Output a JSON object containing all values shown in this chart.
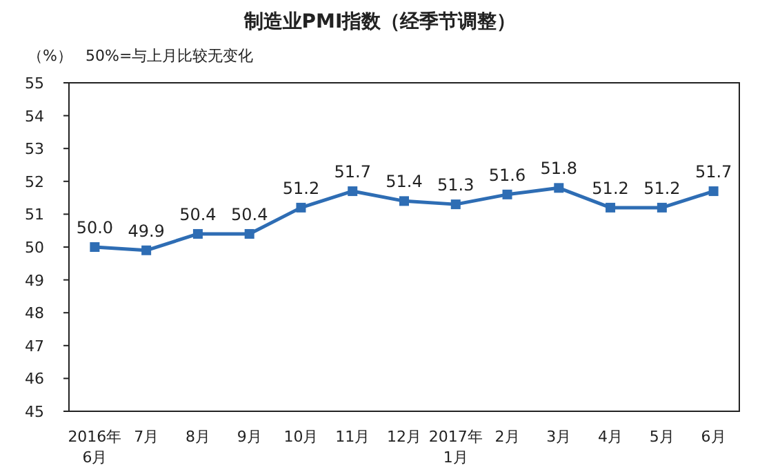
{
  "chart_data": {
    "type": "line",
    "title": "制造业PMI指数（经季节调整）",
    "ylabel": "（%）",
    "annotations": [
      "50%=与上月比较无变化"
    ],
    "categories": [
      "2016年\n6月",
      "7月",
      "8月",
      "9月",
      "10月",
      "11月",
      "12月",
      "2017年\n1月",
      "2月",
      "3月",
      "4月",
      "5月",
      "6月"
    ],
    "series": [
      {
        "color": "#2e6db4",
        "values": [
          50.0,
          49.9,
          50.4,
          50.4,
          51.2,
          51.7,
          51.4,
          51.3,
          51.6,
          51.8,
          51.2,
          51.2,
          51.7
        ],
        "value_labels": [
          "50.0",
          "49.9",
          "50.4",
          "50.4",
          "51.2",
          "51.7",
          "51.4",
          "51.3",
          "51.6",
          "51.8",
          "51.2",
          "51.2",
          "51.7"
        ]
      }
    ],
    "ylim": [
      45,
      55
    ],
    "yticks": [
      45,
      46,
      47,
      48,
      49,
      50,
      51,
      52,
      53,
      54,
      55
    ],
    "marker": "square",
    "line_style": "solid",
    "grid": false
  }
}
